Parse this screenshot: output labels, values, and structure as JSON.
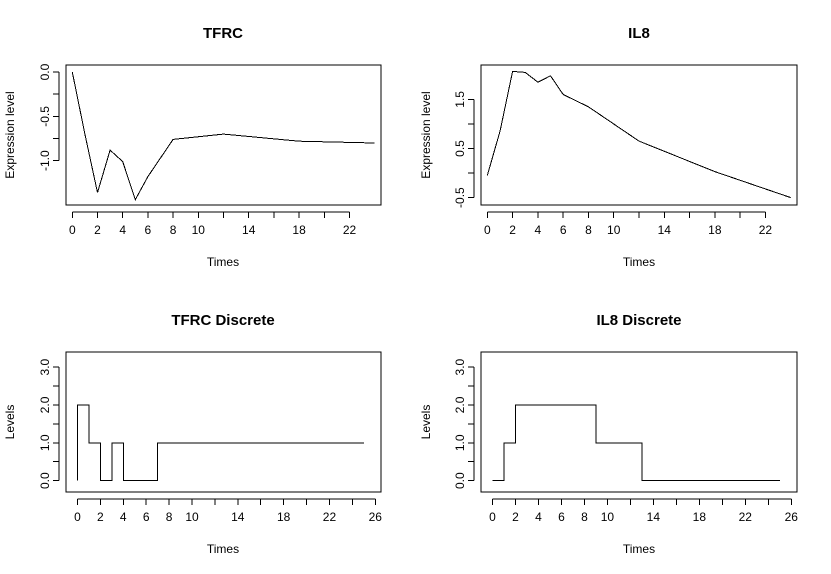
{
  "chart_data": [
    {
      "type": "line",
      "title": "TFRC",
      "xlabel": "Times",
      "ylabel": "Expression level",
      "xlim": [
        -0.5,
        24.5
      ],
      "ylim": [
        -1.5,
        0.08
      ],
      "xticks": [
        0,
        2,
        4,
        6,
        8,
        10,
        14,
        18,
        22
      ],
      "yticks": [
        0.0,
        -0.5,
        -1.0
      ],
      "ytick_labels": [
        "0.0",
        "-0.5",
        "-1.0"
      ],
      "series": [
        {
          "x": [
            0,
            1,
            2,
            3,
            4,
            5,
            6,
            8,
            12,
            18,
            24
          ],
          "y": [
            0.0,
            -0.7,
            -1.36,
            -0.88,
            -1.01,
            -1.44,
            -1.18,
            -0.76,
            -0.7,
            -0.78,
            -0.8
          ]
        }
      ]
    },
    {
      "type": "line",
      "title": "IL8",
      "xlabel": "Times",
      "ylabel": "Expression level",
      "xlim": [
        -0.5,
        24.5
      ],
      "ylim": [
        -0.65,
        2.2
      ],
      "xticks": [
        0,
        2,
        4,
        6,
        8,
        10,
        14,
        18,
        22
      ],
      "yticks": [
        1.5,
        0.5,
        -0.5
      ],
      "ytick_labels": [
        "1.5",
        "0.5",
        "-0.5"
      ],
      "series": [
        {
          "x": [
            0,
            1,
            2,
            3,
            4,
            5,
            6,
            8,
            12,
            18,
            24
          ],
          "y": [
            -0.05,
            0.85,
            2.07,
            2.05,
            1.85,
            1.98,
            1.6,
            1.35,
            0.65,
            0.03,
            -0.5
          ]
        }
      ]
    },
    {
      "type": "line",
      "title": "TFRC Discrete",
      "xlabel": "Times",
      "ylabel": "Levels",
      "xlim": [
        -1,
        26.5
      ],
      "ylim": [
        -0.3,
        3.4
      ],
      "xticks": [
        0,
        2,
        4,
        6,
        8,
        10,
        14,
        18,
        22,
        26
      ],
      "yticks": [
        0.0,
        1.0,
        2.0,
        3.0
      ],
      "ytick_labels": [
        "0.0",
        "1.0",
        "2.0",
        "3.0"
      ],
      "series": [
        {
          "x": [
            0,
            0,
            1,
            1,
            2,
            2,
            3,
            3,
            4,
            4,
            7,
            7,
            25
          ],
          "y": [
            0,
            2,
            2,
            1,
            1,
            0,
            0,
            1,
            1,
            0,
            0,
            1,
            1
          ]
        }
      ]
    },
    {
      "type": "line",
      "title": "IL8 Discrete",
      "xlabel": "Times",
      "ylabel": "Levels",
      "xlim": [
        -1,
        26.5
      ],
      "ylim": [
        -0.3,
        3.4
      ],
      "xticks": [
        0,
        2,
        4,
        6,
        8,
        10,
        14,
        18,
        22,
        26
      ],
      "yticks": [
        0.0,
        1.0,
        2.0,
        3.0
      ],
      "ytick_labels": [
        "0.0",
        "1.0",
        "2.0",
        "3.0"
      ],
      "series": [
        {
          "x": [
            0,
            1,
            1,
            2,
            2,
            9,
            9,
            13,
            13,
            25
          ],
          "y": [
            0,
            0,
            1,
            1,
            2,
            2,
            1,
            1,
            0,
            0
          ]
        }
      ]
    }
  ]
}
